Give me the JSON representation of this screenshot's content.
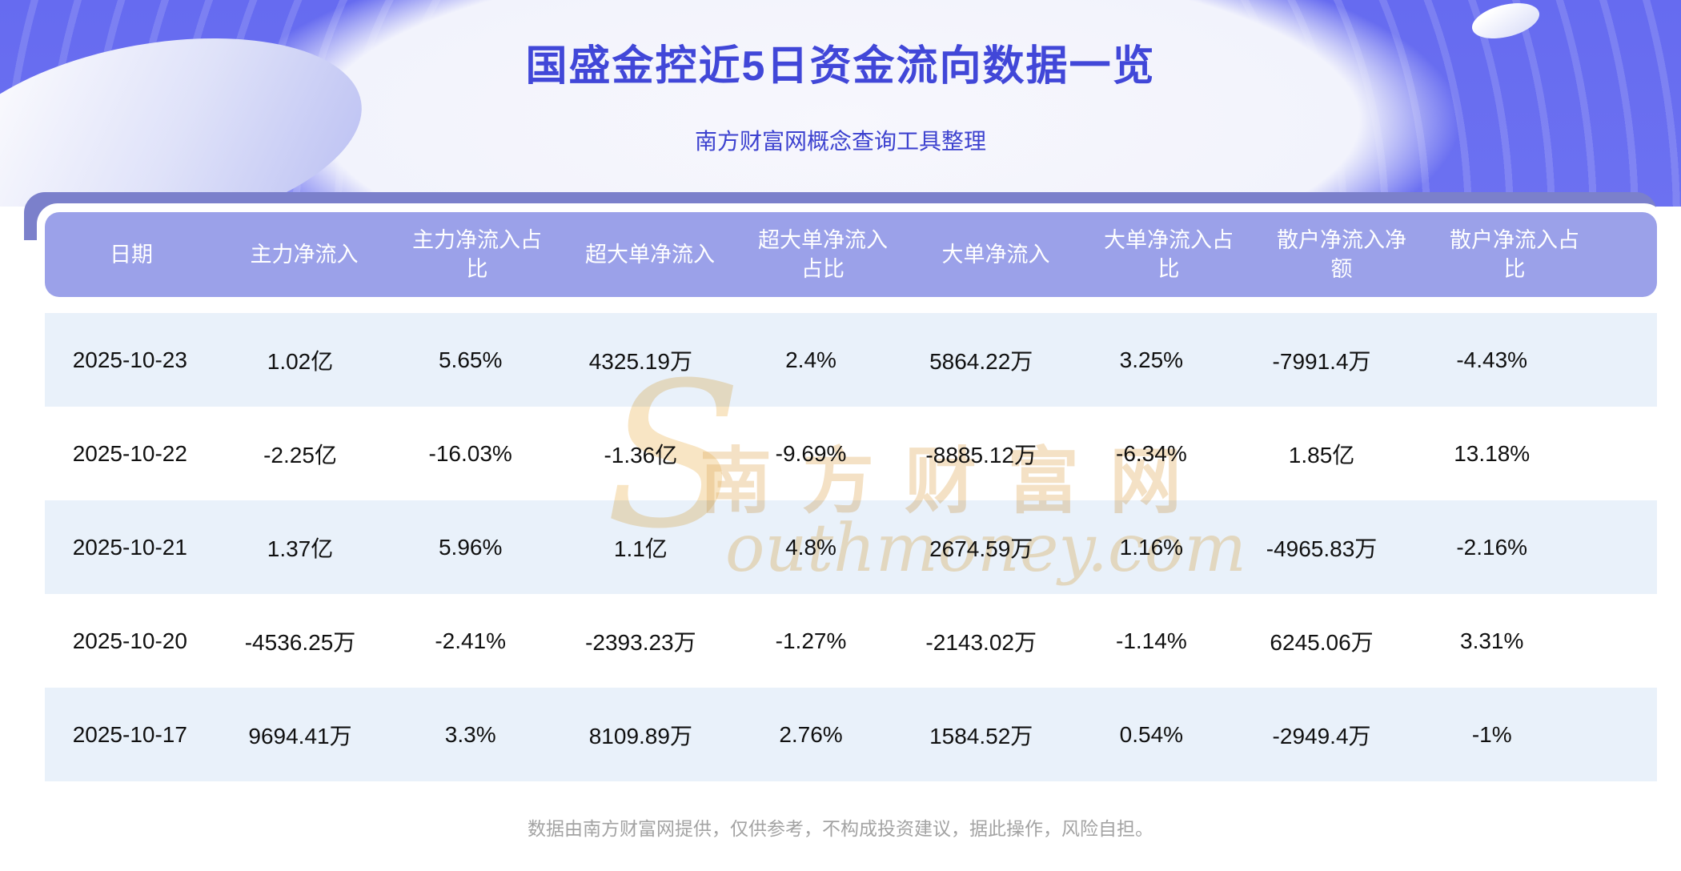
{
  "page": {
    "title": "国盛金控近5日资金流向数据一览",
    "subtitle": "南方财富网概念查询工具整理",
    "footer_note": "数据由南方财富网提供，仅供参考，不构成投资建议，据此操作，风险自担。"
  },
  "watermark": {
    "initial": "S",
    "cn": "南方财富网",
    "en": "outhmoney.com"
  },
  "colors": {
    "banner_purple": "#6c71f1",
    "banner_arc": "#8487f5",
    "band_purple": "#7b80cb",
    "header_row": "#9ba1e9",
    "row_alt_blue": "#e9f1fa",
    "title_blue": "#4147d8",
    "subtitle_blue": "#3d42cf",
    "data_text": "#101010",
    "footer_gray": "#a3a3a3",
    "watermark_orange": "#f0c98c"
  },
  "chart_data": {
    "type": "table",
    "title": "国盛金控近5日资金流向数据一览",
    "columns": [
      "日期",
      "主力净流入",
      "主力净流入占比",
      "超大单净流入",
      "超大单净流入占比",
      "大单净流入",
      "大单净流入占比",
      "散户净流入净额",
      "散户净流入占比"
    ],
    "rows": [
      [
        "2025-10-23",
        "1.02亿",
        "5.65%",
        "4325.19万",
        "2.4%",
        "5864.22万",
        "3.25%",
        "-7991.4万",
        "-4.43%"
      ],
      [
        "2025-10-22",
        "-2.25亿",
        "-16.03%",
        "-1.36亿",
        "-9.69%",
        "-8885.12万",
        "-6.34%",
        "1.85亿",
        "13.18%"
      ],
      [
        "2025-10-21",
        "1.37亿",
        "5.96%",
        "1.1亿",
        "4.8%",
        "2674.59万",
        "1.16%",
        "-4965.83万",
        "-2.16%"
      ],
      [
        "2025-10-20",
        "-4536.25万",
        "-2.41%",
        "-2393.23万",
        "-1.27%",
        "-2143.02万",
        "-1.14%",
        "6245.06万",
        "3.31%"
      ],
      [
        "2025-10-17",
        "9694.41万",
        "3.3%",
        "8109.89万",
        "2.76%",
        "1584.52万",
        "0.54%",
        "-2949.4万",
        "-1%"
      ]
    ]
  }
}
